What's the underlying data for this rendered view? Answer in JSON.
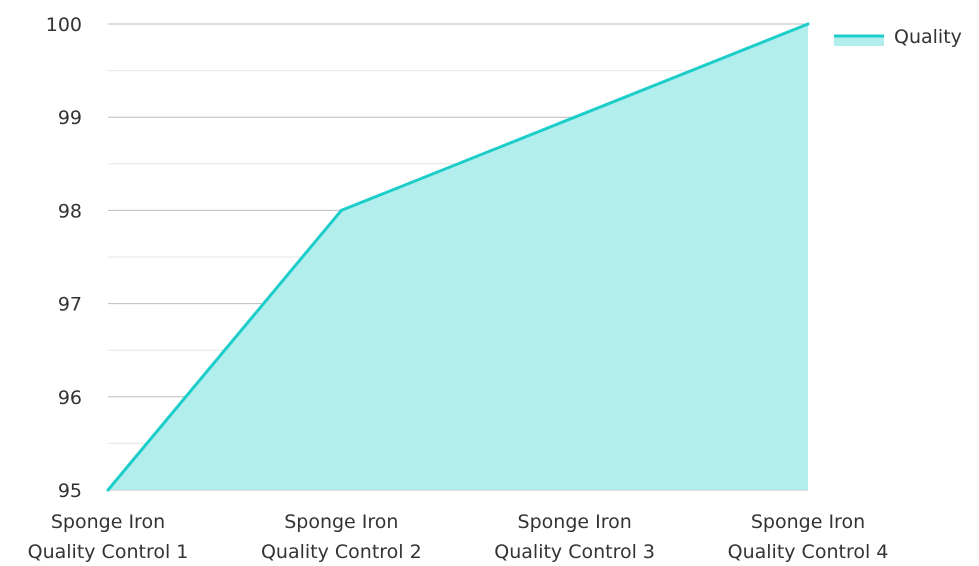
{
  "chart_data": {
    "type": "area",
    "title": "",
    "xlabel": "",
    "ylabel": "",
    "categories": [
      [
        "Sponge Iron",
        "Quality Control 1"
      ],
      [
        "Sponge Iron",
        "Quality Control 2"
      ],
      [
        "Sponge Iron",
        "Quality Control 3"
      ],
      [
        "Sponge Iron",
        "Quality Control 4"
      ]
    ],
    "series": [
      {
        "name": "Quality",
        "values": [
          95,
          98,
          99,
          100
        ],
        "line_color": "#1ccdc9",
        "fill_color": "#b1eeec"
      }
    ],
    "ylim": [
      95,
      100
    ],
    "yticks": [
      "95",
      "96",
      "97",
      "98",
      "99",
      "100"
    ],
    "grid": true,
    "legend": {
      "position": "top-right"
    }
  }
}
